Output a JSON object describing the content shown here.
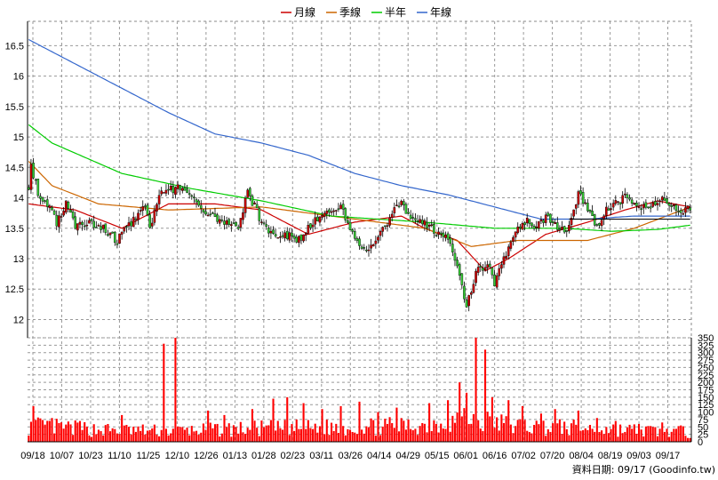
{
  "chart_data": {
    "type": "candlestick",
    "legend": {
      "placement": "top-center",
      "items": [
        {
          "name": "月線",
          "color": "#cc0000"
        },
        {
          "name": "季線",
          "color": "#cc6600"
        },
        {
          "name": "半年",
          "color": "#00cc00"
        },
        {
          "name": "年線",
          "color": "#3366cc"
        }
      ]
    },
    "price_axis": {
      "ylim": [
        11.7,
        16.9
      ],
      "ticks": [
        12,
        12.5,
        13,
        13.5,
        14,
        14.5,
        15,
        15.5,
        16,
        16.5
      ]
    },
    "volume_axis": {
      "ylim": [
        0,
        350
      ],
      "ticks": [
        0,
        25,
        50,
        75,
        100,
        125,
        150,
        175,
        200,
        225,
        250,
        275,
        300,
        325,
        350
      ],
      "position": "right"
    },
    "x_tick_labels": [
      "09/18",
      "10/07",
      "10/23",
      "11/10",
      "11/25",
      "12/10",
      "12/26",
      "01/13",
      "01/28",
      "02/23",
      "03/11",
      "03/26",
      "04/14",
      "04/29",
      "05/15",
      "06/01",
      "06/16",
      "07/02",
      "07/20",
      "08/04",
      "08/19",
      "09/03",
      "09/17"
    ],
    "grid": true,
    "colors": {
      "up": "#cc0000",
      "down": "#33cc33",
      "volume": "#ff0000",
      "grid": "#999999",
      "price_line": "#000000"
    },
    "price_anchors": [
      [
        0,
        14.2
      ],
      [
        1,
        14.5
      ],
      [
        4,
        14.1
      ],
      [
        8,
        13.9
      ],
      [
        12,
        13.6
      ],
      [
        16,
        13.9
      ],
      [
        20,
        13.55
      ],
      [
        26,
        13.6
      ],
      [
        32,
        13.5
      ],
      [
        38,
        13.3
      ],
      [
        44,
        13.6
      ],
      [
        50,
        13.9
      ],
      [
        52,
        13.5
      ],
      [
        56,
        14.1
      ],
      [
        60,
        14.1
      ],
      [
        64,
        14.2
      ],
      [
        72,
        13.9
      ],
      [
        78,
        13.75
      ],
      [
        84,
        13.6
      ],
      [
        90,
        13.5
      ],
      [
        94,
        14.1
      ],
      [
        100,
        13.6
      ],
      [
        106,
        13.3
      ],
      [
        110,
        13.4
      ],
      [
        116,
        13.3
      ],
      [
        122,
        13.6
      ],
      [
        128,
        13.75
      ],
      [
        134,
        13.9
      ],
      [
        140,
        13.3
      ],
      [
        146,
        13.15
      ],
      [
        150,
        13.4
      ],
      [
        156,
        13.7
      ],
      [
        160,
        14.0
      ],
      [
        164,
        13.6
      ],
      [
        170,
        13.6
      ],
      [
        176,
        13.4
      ],
      [
        180,
        13.3
      ],
      [
        184,
        12.9
      ],
      [
        188,
        12.2
      ],
      [
        192,
        12.8
      ],
      [
        198,
        12.9
      ],
      [
        200,
        12.6
      ],
      [
        204,
        13.0
      ],
      [
        208,
        13.4
      ],
      [
        214,
        13.6
      ],
      [
        218,
        13.5
      ],
      [
        222,
        13.7
      ],
      [
        228,
        13.5
      ],
      [
        232,
        13.5
      ],
      [
        236,
        14.1
      ],
      [
        240,
        13.8
      ],
      [
        244,
        13.5
      ],
      [
        248,
        13.8
      ],
      [
        252,
        13.9
      ],
      [
        256,
        14.0
      ],
      [
        262,
        13.9
      ],
      [
        266,
        13.8
      ],
      [
        272,
        14.0
      ],
      [
        278,
        13.8
      ],
      [
        284,
        13.8
      ]
    ],
    "moving_averages": [
      {
        "name": "月線",
        "points": [
          [
            0,
            13.9
          ],
          [
            20,
            13.8
          ],
          [
            40,
            13.5
          ],
          [
            60,
            13.9
          ],
          [
            80,
            13.9
          ],
          [
            100,
            13.8
          ],
          [
            120,
            13.4
          ],
          [
            140,
            13.6
          ],
          [
            160,
            13.7
          ],
          [
            170,
            13.5
          ],
          [
            184,
            13.3
          ],
          [
            196,
            12.8
          ],
          [
            206,
            13.0
          ],
          [
            222,
            13.4
          ],
          [
            240,
            13.6
          ],
          [
            256,
            13.8
          ],
          [
            270,
            13.95
          ],
          [
            284,
            13.85
          ]
        ]
      },
      {
        "name": "季線",
        "points": [
          [
            0,
            14.6
          ],
          [
            10,
            14.2
          ],
          [
            30,
            13.9
          ],
          [
            60,
            13.8
          ],
          [
            100,
            13.85
          ],
          [
            140,
            13.65
          ],
          [
            170,
            13.5
          ],
          [
            190,
            13.2
          ],
          [
            210,
            13.3
          ],
          [
            240,
            13.3
          ],
          [
            260,
            13.5
          ],
          [
            284,
            13.85
          ]
        ]
      },
      {
        "name": "半年",
        "points": [
          [
            0,
            15.2
          ],
          [
            10,
            14.9
          ],
          [
            40,
            14.4
          ],
          [
            70,
            14.15
          ],
          [
            100,
            13.95
          ],
          [
            130,
            13.7
          ],
          [
            150,
            13.65
          ],
          [
            170,
            13.6
          ],
          [
            200,
            13.5
          ],
          [
            230,
            13.5
          ],
          [
            250,
            13.45
          ],
          [
            270,
            13.48
          ],
          [
            284,
            13.55
          ]
        ]
      },
      {
        "name": "年線",
        "points": [
          [
            0,
            16.6
          ],
          [
            30,
            16.0
          ],
          [
            60,
            15.4
          ],
          [
            80,
            15.05
          ],
          [
            100,
            14.9
          ],
          [
            120,
            14.7
          ],
          [
            140,
            14.4
          ],
          [
            160,
            14.2
          ],
          [
            180,
            14.05
          ],
          [
            200,
            13.85
          ],
          [
            220,
            13.65
          ],
          [
            240,
            13.65
          ],
          [
            260,
            13.7
          ],
          [
            284,
            13.7
          ]
        ]
      }
    ],
    "reference_lines": [
      {
        "value": 13.65,
        "from": 232,
        "to": 284
      }
    ],
    "volume_anchors": [
      [
        0,
        60
      ],
      [
        30,
        45
      ],
      [
        60,
        40
      ],
      [
        100,
        50
      ],
      [
        140,
        55
      ],
      [
        170,
        60
      ],
      [
        186,
        90
      ],
      [
        196,
        75
      ],
      [
        210,
        60
      ],
      [
        240,
        50
      ],
      [
        284,
        35
      ]
    ],
    "volume_spikes": [
      [
        2,
        120
      ],
      [
        10,
        80
      ],
      [
        22,
        70
      ],
      [
        40,
        90
      ],
      [
        58,
        330
      ],
      [
        63,
        365
      ],
      [
        77,
        105
      ],
      [
        84,
        90
      ],
      [
        96,
        110
      ],
      [
        105,
        145
      ],
      [
        111,
        150
      ],
      [
        118,
        130
      ],
      [
        126,
        110
      ],
      [
        134,
        120
      ],
      [
        142,
        135
      ],
      [
        150,
        100
      ],
      [
        158,
        115
      ],
      [
        172,
        130
      ],
      [
        180,
        140
      ],
      [
        185,
        200
      ],
      [
        188,
        165
      ],
      [
        192,
        355
      ],
      [
        196,
        310
      ],
      [
        199,
        150
      ],
      [
        206,
        140
      ],
      [
        212,
        120
      ],
      [
        220,
        95
      ],
      [
        226,
        110
      ],
      [
        236,
        105
      ],
      [
        244,
        80
      ],
      [
        252,
        70
      ],
      [
        262,
        60
      ],
      [
        272,
        65
      ],
      [
        280,
        55
      ]
    ]
  },
  "source_label": "資料日期: 09/17 (Goodinfo.tw)"
}
